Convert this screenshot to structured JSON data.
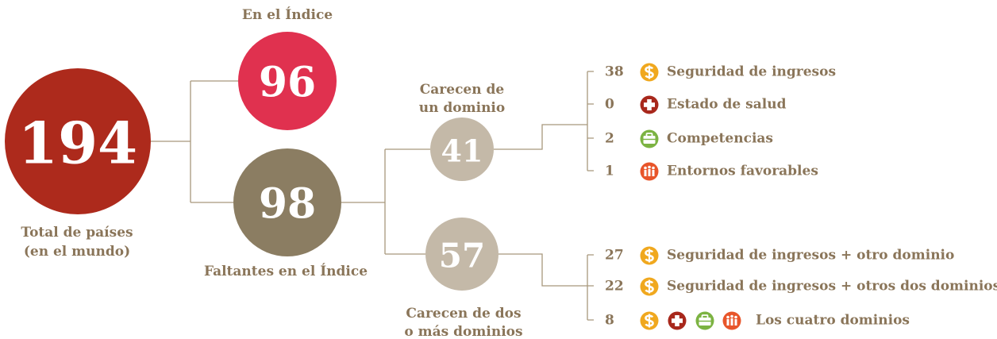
{
  "total": {
    "value": 194,
    "label_lines": [
      "Total de países",
      "(en el mundo)"
    ]
  },
  "in_index": {
    "value": 96,
    "label": "En el Índice"
  },
  "missing": {
    "value": 98,
    "label": "Faltantes en el Índice"
  },
  "missing_one": {
    "value": 41,
    "label_lines": [
      "Carecen de",
      "un dominio"
    ],
    "items": [
      {
        "value": 38,
        "label": "Seguridad de ingresos"
      },
      {
        "value": 0,
        "label": "Estado de salud"
      },
      {
        "value": 2,
        "label": "Competencias"
      },
      {
        "value": 1,
        "label": "Entornos favorables"
      }
    ]
  },
  "missing_two_plus": {
    "value": 57,
    "label_lines": [
      "Carecen de dos",
      "o más dominios"
    ],
    "items": [
      {
        "value": 27,
        "label": "Seguridad de ingresos + otro dominio"
      },
      {
        "value": 22,
        "label": "Seguridad de ingresos + otros dos dominios"
      },
      {
        "value": 8,
        "label": "Los cuatro dominios"
      }
    ]
  }
}
